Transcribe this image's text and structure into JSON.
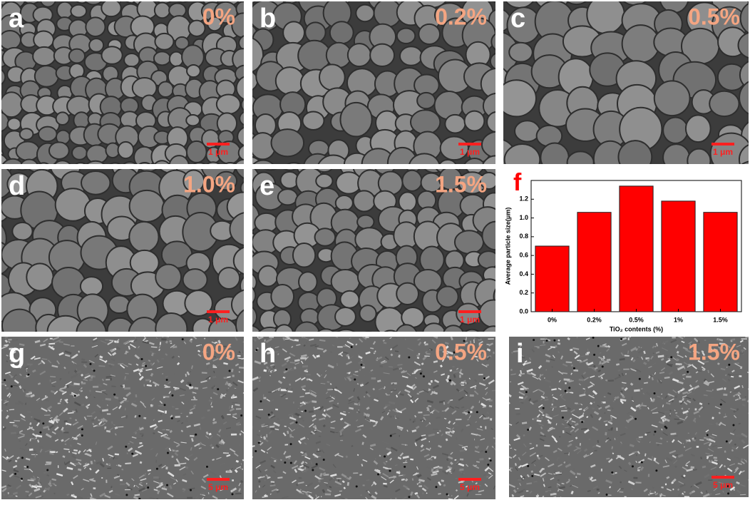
{
  "panels": [
    {
      "letter": "a",
      "label": "0%",
      "scale": "1 μm"
    },
    {
      "letter": "b",
      "label": "0.2%",
      "scale": "1 μm"
    },
    {
      "letter": "c",
      "label": "0.5%",
      "scale": "1 μm"
    },
    {
      "letter": "d",
      "label": "1.0%",
      "scale": "1 μm"
    },
    {
      "letter": "e",
      "label": "1.5%",
      "scale": "1 μm"
    },
    {
      "letter": "g",
      "label": "0%",
      "scale": "5 μm"
    },
    {
      "letter": "h",
      "label": "0.5%",
      "scale": "5 μm"
    },
    {
      "letter": "i",
      "label": "1.5%",
      "scale": "5 μm"
    }
  ],
  "chart_data": {
    "type": "bar",
    "panel_letter": "f",
    "x_label": "TiO₂ contents (%)",
    "y_label": "Average particle size(μm)",
    "categories": [
      "0%",
      "0.2%",
      "0.5%",
      "1%",
      "1.5%"
    ],
    "values": [
      0.7,
      1.06,
      1.34,
      1.18,
      1.06
    ],
    "color": "#ff0000",
    "ylim": [
      0,
      1.4
    ],
    "yticks": [
      {
        "value": 0,
        "label": "0.0"
      },
      0.2,
      0.4,
      0.6,
      0.8,
      {
        "value": 1,
        "label": "1.0"
      },
      1.2
    ]
  }
}
